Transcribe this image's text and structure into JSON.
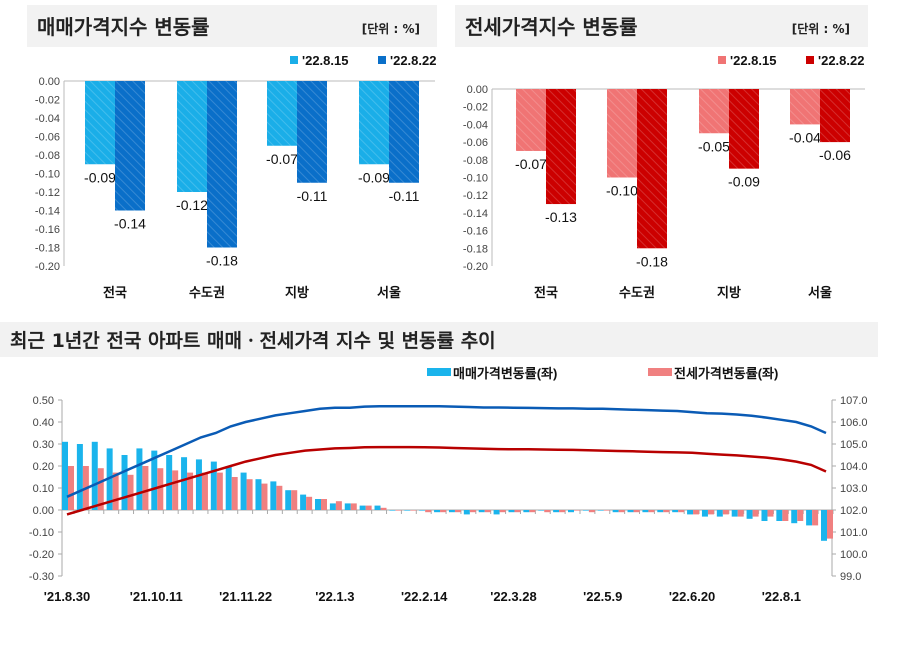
{
  "chart_data": [
    {
      "type": "bar",
      "title": "매매가격지수 변동률",
      "unit_note": "[단위 : %]",
      "categories": [
        "전국",
        "수도권",
        "지방",
        "서울"
      ],
      "series": [
        {
          "name": "'22.8.15",
          "values": [
            -0.09,
            -0.12,
            -0.07,
            -0.09
          ],
          "color": "#1aaee8"
        },
        {
          "name": "'22.8.22",
          "values": [
            -0.14,
            -0.18,
            -0.11,
            -0.11
          ],
          "color": "#0a6fc9"
        }
      ],
      "ylim": [
        -0.2,
        0.0
      ],
      "yticks": [
        "0.00",
        "-0.02",
        "-0.04",
        "-0.06",
        "-0.08",
        "-0.10",
        "-0.12",
        "-0.14",
        "-0.16",
        "-0.18",
        "-0.20"
      ],
      "legend": "top-right"
    },
    {
      "type": "bar",
      "title": "전세가격지수 변동률",
      "unit_note": "[단위 : %]",
      "categories": [
        "전국",
        "수도권",
        "지방",
        "서울"
      ],
      "series": [
        {
          "name": "'22.8.15",
          "values": [
            -0.07,
            -0.1,
            -0.05,
            -0.04
          ],
          "color": "#f07474"
        },
        {
          "name": "'22.8.22",
          "values": [
            -0.13,
            -0.18,
            -0.09,
            -0.06
          ],
          "color": "#cc0000"
        }
      ],
      "ylim": [
        -0.2,
        0.0
      ],
      "yticks": [
        "0.00",
        "-0.02",
        "-0.04",
        "-0.06",
        "-0.08",
        "-0.10",
        "-0.12",
        "-0.14",
        "-0.16",
        "-0.18",
        "-0.20"
      ],
      "legend": "top-right"
    },
    {
      "type": "bar+line",
      "title": "최근 1년간 전국 아파트 매매ㆍ전세가격 지수 및 변동률 추이",
      "xtick_labels": [
        "'21.8.30",
        "'21.10.11",
        "'21.11.22",
        "'22.1.3",
        "'22.2.14",
        "'22.3.28",
        "'22.5.9",
        "'22.6.20",
        "'22.8.1"
      ],
      "xtick_index": [
        0,
        6,
        12,
        18,
        24,
        30,
        36,
        42,
        48
      ],
      "y_left": {
        "range": [
          -0.3,
          0.5
        ],
        "ticks": [
          "0.50",
          "0.40",
          "0.30",
          "0.20",
          "0.10",
          "0.00",
          "-0.10",
          "-0.20",
          "-0.30"
        ]
      },
      "y_right": {
        "range": [
          99.0,
          107.0
        ],
        "ticks": [
          "107.0",
          "106.0",
          "105.0",
          "104.0",
          "103.0",
          "102.0",
          "101.0",
          "100.0",
          "99.0"
        ]
      },
      "legend": "top-right",
      "bar_series": [
        {
          "name": "매매가격변동률(좌)",
          "color": "#1ab4ec",
          "values": [
            0.31,
            0.3,
            0.31,
            0.28,
            0.25,
            0.28,
            0.27,
            0.25,
            0.24,
            0.23,
            0.22,
            0.2,
            0.17,
            0.14,
            0.13,
            0.09,
            0.07,
            0.05,
            0.03,
            0.03,
            0.02,
            0.02,
            0.0,
            0.0,
            0.0,
            -0.01,
            -0.01,
            -0.02,
            -0.01,
            -0.02,
            -0.01,
            -0.01,
            0.0,
            -0.01,
            -0.01,
            0.0,
            0.0,
            -0.01,
            -0.01,
            -0.01,
            -0.01,
            -0.01,
            -0.02,
            -0.03,
            -0.03,
            -0.03,
            -0.04,
            -0.05,
            -0.05,
            -0.06,
            -0.07,
            -0.14
          ]
        },
        {
          "name": "전세가격변동률(좌)",
          "color": "#f08080",
          "values": [
            0.2,
            0.2,
            0.19,
            0.17,
            0.16,
            0.2,
            0.19,
            0.18,
            0.17,
            0.17,
            0.17,
            0.15,
            0.14,
            0.12,
            0.11,
            0.09,
            0.06,
            0.05,
            0.04,
            0.03,
            0.02,
            0.01,
            0.0,
            0.0,
            -0.01,
            -0.01,
            -0.01,
            -0.01,
            -0.01,
            -0.01,
            -0.01,
            -0.01,
            -0.01,
            -0.01,
            0.0,
            -0.01,
            0.0,
            -0.01,
            -0.01,
            -0.01,
            -0.01,
            -0.01,
            -0.02,
            -0.02,
            -0.02,
            -0.03,
            -0.03,
            -0.03,
            -0.05,
            -0.05,
            -0.07,
            -0.13
          ]
        }
      ],
      "line_series": [
        {
          "color": "#0a5bb5",
          "values": [
            102.6,
            102.9,
            103.2,
            103.5,
            103.8,
            104.1,
            104.4,
            104.7,
            105.0,
            105.3,
            105.5,
            105.8,
            106.0,
            106.15,
            106.3,
            106.4,
            106.5,
            106.6,
            106.65,
            106.65,
            106.7,
            106.72,
            106.72,
            106.72,
            106.72,
            106.72,
            106.7,
            106.68,
            106.66,
            106.66,
            106.65,
            106.64,
            106.63,
            106.62,
            106.62,
            106.6,
            106.6,
            106.58,
            106.56,
            106.54,
            106.52,
            106.5,
            106.45,
            106.4,
            106.38,
            106.34,
            106.28,
            106.2,
            106.1,
            106.0,
            105.8,
            105.5
          ]
        },
        {
          "color": "#b80000",
          "values": [
            101.8,
            102.0,
            102.2,
            102.4,
            102.6,
            102.8,
            103.0,
            103.2,
            103.4,
            103.6,
            103.8,
            104.0,
            104.2,
            104.35,
            104.5,
            104.6,
            104.7,
            104.75,
            104.8,
            104.82,
            104.85,
            104.86,
            104.86,
            104.86,
            104.85,
            104.84,
            104.82,
            104.8,
            104.78,
            104.77,
            104.76,
            104.76,
            104.75,
            104.74,
            104.73,
            104.72,
            104.7,
            104.68,
            104.67,
            104.65,
            104.63,
            104.62,
            104.6,
            104.56,
            104.52,
            104.48,
            104.43,
            104.38,
            104.3,
            104.2,
            104.05,
            103.75
          ]
        }
      ]
    }
  ]
}
